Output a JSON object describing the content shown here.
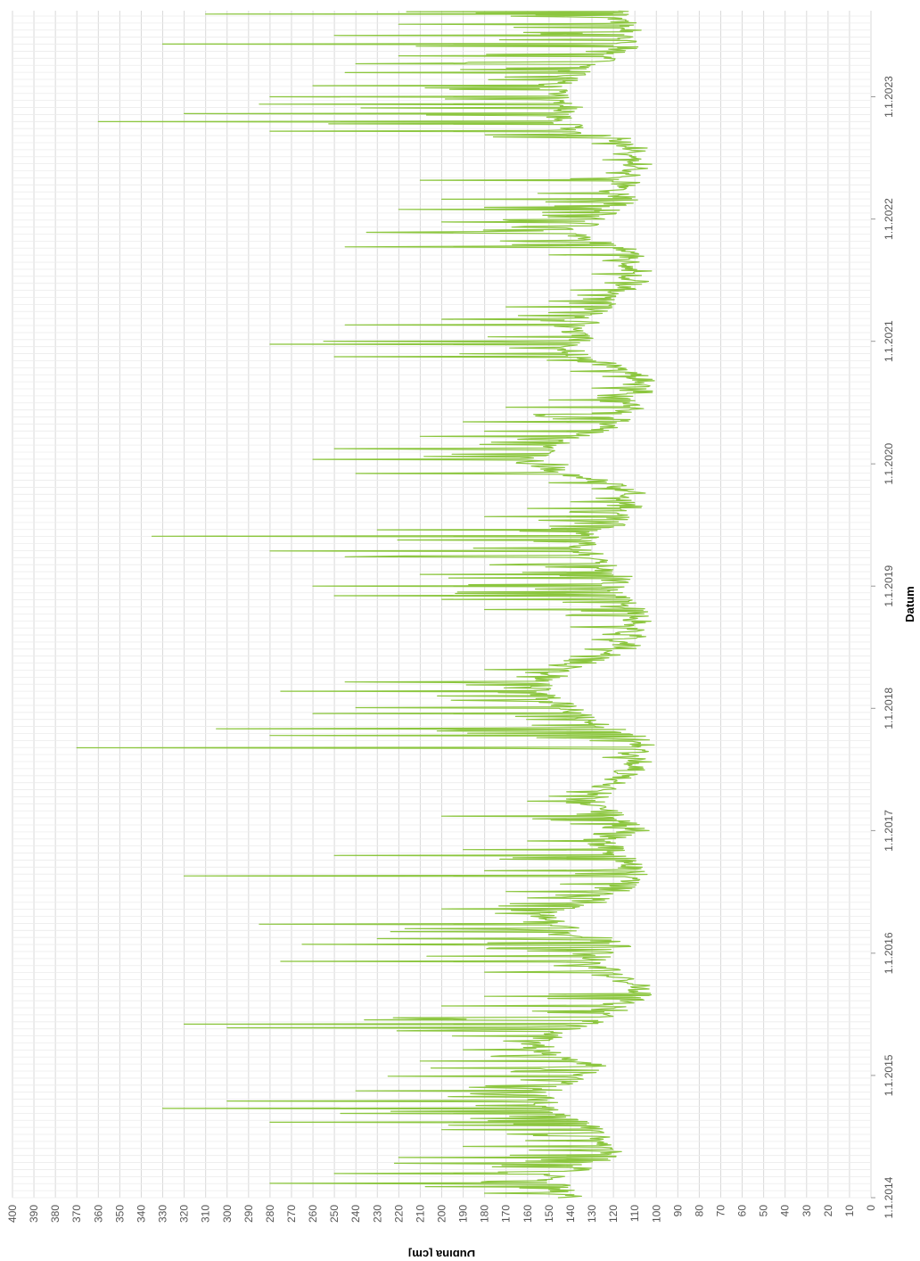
{
  "chart_data": {
    "type": "line",
    "orientation": "rotated-90-ccw",
    "xlabel": "Datum",
    "ylabel": "Dubina [cm]",
    "x_ticks": [
      "1.1.2014",
      "1.1.2015",
      "1.1.2016",
      "1.1.2017",
      "1.1.2018",
      "1.1.2019",
      "1.1.2020",
      "1.1.2021",
      "1.1.2022",
      "1.1.2023"
    ],
    "y_ticks": [
      400,
      390,
      380,
      370,
      360,
      350,
      340,
      330,
      320,
      310,
      300,
      290,
      280,
      270,
      260,
      250,
      240,
      230,
      220,
      210,
      200,
      190,
      180,
      170,
      160,
      150,
      140,
      130,
      120,
      110,
      100,
      90,
      80,
      70,
      60,
      50,
      40,
      30,
      20,
      10,
      0
    ],
    "xlim": [
      "2014-01-01",
      "2023-09-15"
    ],
    "ylim": [
      0,
      400
    ],
    "grid": true,
    "line_color": "#8cc63f",
    "series": [
      {
        "x": [
          "2014-01-01",
          "2014-02-01",
          "2014-03-01",
          "2014-04-01",
          "2014-05-01",
          "2014-06-01",
          "2014-07-01",
          "2014-08-01",
          "2014-09-01",
          "2014-10-01",
          "2014-11-01",
          "2014-12-01",
          "2015-01-01",
          "2015-02-01",
          "2015-03-01",
          "2015-04-01",
          "2015-05-01",
          "2015-06-01",
          "2015-07-01",
          "2015-08-01",
          "2015-09-01",
          "2015-10-01",
          "2015-11-01",
          "2015-12-01",
          "2016-01-01",
          "2016-02-01",
          "2016-03-01",
          "2016-04-01",
          "2016-05-01",
          "2016-06-01",
          "2016-07-01",
          "2016-08-01",
          "2016-09-01",
          "2016-10-01",
          "2016-11-01",
          "2016-12-01",
          "2017-01-01",
          "2017-02-01",
          "2017-03-01",
          "2017-04-01",
          "2017-05-01",
          "2017-06-01",
          "2017-07-01",
          "2017-08-01",
          "2017-09-01",
          "2017-10-01",
          "2017-11-01",
          "2017-12-01",
          "2018-01-01",
          "2018-02-01",
          "2018-03-01",
          "2018-04-01",
          "2018-05-01",
          "2018-06-01",
          "2018-07-01",
          "2018-08-01",
          "2018-09-01",
          "2018-10-01",
          "2018-11-01",
          "2018-12-01",
          "2019-01-01",
          "2019-02-01",
          "2019-03-01",
          "2019-04-01",
          "2019-05-01",
          "2019-06-01",
          "2019-07-01",
          "2019-08-01",
          "2019-09-01",
          "2019-10-01",
          "2019-11-01",
          "2019-12-01",
          "2020-01-01",
          "2020-02-01",
          "2020-03-01",
          "2020-04-01",
          "2020-05-01",
          "2020-06-01",
          "2020-07-01",
          "2020-08-01",
          "2020-09-01",
          "2020-10-01",
          "2020-11-01",
          "2020-12-01",
          "2021-01-01",
          "2021-02-01",
          "2021-03-01",
          "2021-04-01",
          "2021-05-01",
          "2021-06-01",
          "2021-07-01",
          "2021-08-01",
          "2021-09-01",
          "2021-10-01",
          "2021-11-01",
          "2021-12-01",
          "2022-01-01",
          "2022-02-01",
          "2022-03-01",
          "2022-04-01",
          "2022-05-01",
          "2022-06-01",
          "2022-07-01",
          "2022-08-01",
          "2022-09-01",
          "2022-10-01",
          "2022-11-01",
          "2022-12-01",
          "2023-01-01",
          "2023-02-01",
          "2023-03-01",
          "2023-04-01",
          "2023-05-01",
          "2023-06-01",
          "2023-07-01",
          "2023-08-01",
          "2023-09-01"
        ],
        "base": [
          140,
          145,
          150,
          135,
          125,
          120,
          128,
          130,
          145,
          150,
          155,
          148,
          135,
          130,
          150,
          155,
          150,
          135,
          120,
          112,
          108,
          110,
          120,
          130,
          125,
          115,
          140,
          145,
          155,
          130,
          118,
          112,
          110,
          115,
          120,
          125,
          110,
          115,
          125,
          130,
          125,
          118,
          112,
          108,
          105,
          108,
          120,
          135,
          140,
          150,
          155,
          150,
          140,
          125,
          115,
          112,
          110,
          108,
          110,
          115,
          120,
          118,
          125,
          130,
          135,
          130,
          120,
          115,
          112,
          110,
          120,
          140,
          160,
          155,
          145,
          130,
          120,
          115,
          110,
          108,
          105,
          110,
          130,
          140,
          135,
          140,
          130,
          125,
          120,
          115,
          110,
          108,
          110,
          115,
          130,
          135,
          130,
          120,
          115,
          118,
          112,
          108,
          105,
          110,
          125,
          140,
          145,
          140,
          145,
          150,
          140,
          130,
          120,
          115,
          110,
          112,
          120
        ],
        "peaks": [
          180,
          280,
          250,
          222,
          220,
          190,
          200,
          280,
          330,
          300,
          240,
          225,
          205,
          210,
          190,
          195,
          300,
          320,
          200,
          180,
          150,
          130,
          180,
          275,
          265,
          230,
          285,
          175,
          200,
          160,
          170,
          320,
          180,
          250,
          190,
          160,
          140,
          200,
          160,
          150,
          130,
          120,
          115,
          125,
          370,
          280,
          305,
          260,
          240,
          275,
          245,
          180,
          150,
          140,
          130,
          125,
          140,
          180,
          200,
          250,
          260,
          210,
          245,
          280,
          335,
          230,
          180,
          160,
          140,
          130,
          150,
          240,
          260,
          250,
          210,
          180,
          190,
          170,
          150,
          130,
          125,
          140,
          250,
          280,
          255,
          245,
          200,
          170,
          150,
          140,
          130,
          125,
          150,
          245,
          235,
          200,
          220,
          180,
          200,
          210,
          140,
          125,
          120,
          130,
          280,
          360,
          320,
          285,
          280,
          260,
          245,
          240,
          220,
          330,
          250,
          220,
          310
        ],
        "dips": [
          78,
          101,
          101,
          112
        ]
      }
    ]
  }
}
